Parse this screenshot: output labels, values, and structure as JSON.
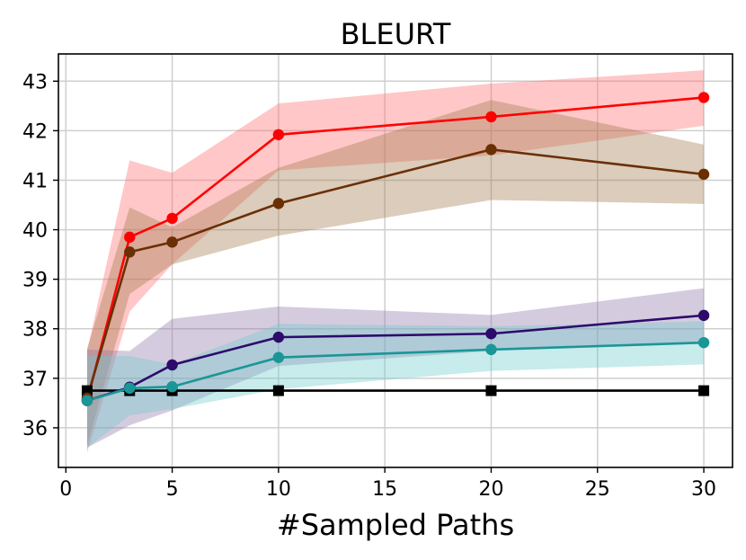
{
  "chart_data": {
    "type": "line",
    "title": "BLEURT",
    "xlabel": "#Sampled Paths",
    "ylabel": "",
    "xlim": [
      -0.35,
      31.35
    ],
    "ylim": [
      35.2,
      43.55
    ],
    "xticks": [
      0,
      5,
      10,
      15,
      20,
      25,
      30
    ],
    "yticks": [
      36,
      37,
      38,
      39,
      40,
      41,
      42,
      43
    ],
    "grid": true,
    "x": [
      1,
      3,
      5,
      10,
      20,
      30
    ],
    "series": [
      {
        "color": "#d4d4d4",
        "line_color": "#000000",
        "marker": "square",
        "values": [
          36.75,
          36.75,
          36.75,
          36.75,
          36.75,
          36.75
        ],
        "band_low": null,
        "band_high": null
      },
      {
        "color": "#ff6b6b",
        "line_color": "#ff0000",
        "marker": "circle",
        "values": [
          36.55,
          39.85,
          40.23,
          41.92,
          42.28,
          42.67
        ],
        "band_low": [
          35.5,
          38.35,
          39.3,
          41.2,
          41.5,
          42.1
        ],
        "band_high": [
          37.55,
          41.4,
          41.15,
          42.55,
          42.95,
          43.22
        ]
      },
      {
        "color": "#a0784d",
        "line_color": "#6b2f05",
        "marker": "circle",
        "values": [
          36.6,
          39.55,
          39.75,
          40.53,
          41.62,
          41.12
        ],
        "band_low": [
          35.65,
          38.7,
          39.3,
          39.88,
          40.6,
          40.52
        ],
        "band_high": [
          37.6,
          40.45,
          40.05,
          41.25,
          42.62,
          41.72
        ]
      },
      {
        "color": "#9075ac",
        "line_color": "#2e0a6b",
        "marker": "circle",
        "values": [
          36.55,
          36.82,
          37.27,
          37.83,
          37.9,
          38.27
        ],
        "band_low": [
          35.6,
          36.05,
          36.35,
          37.25,
          37.55,
          37.7
        ],
        "band_high": [
          37.58,
          37.55,
          38.2,
          38.45,
          38.28,
          38.82
        ]
      },
      {
        "color": "#6fcaca",
        "line_color": "#1a9696",
        "marker": "circle",
        "values": [
          36.55,
          36.8,
          36.83,
          37.42,
          37.58,
          37.72
        ],
        "band_low": [
          35.6,
          36.25,
          36.38,
          36.78,
          37.15,
          37.28
        ],
        "band_high": [
          37.45,
          37.45,
          37.28,
          38.1,
          38.05,
          38.15
        ]
      }
    ]
  }
}
